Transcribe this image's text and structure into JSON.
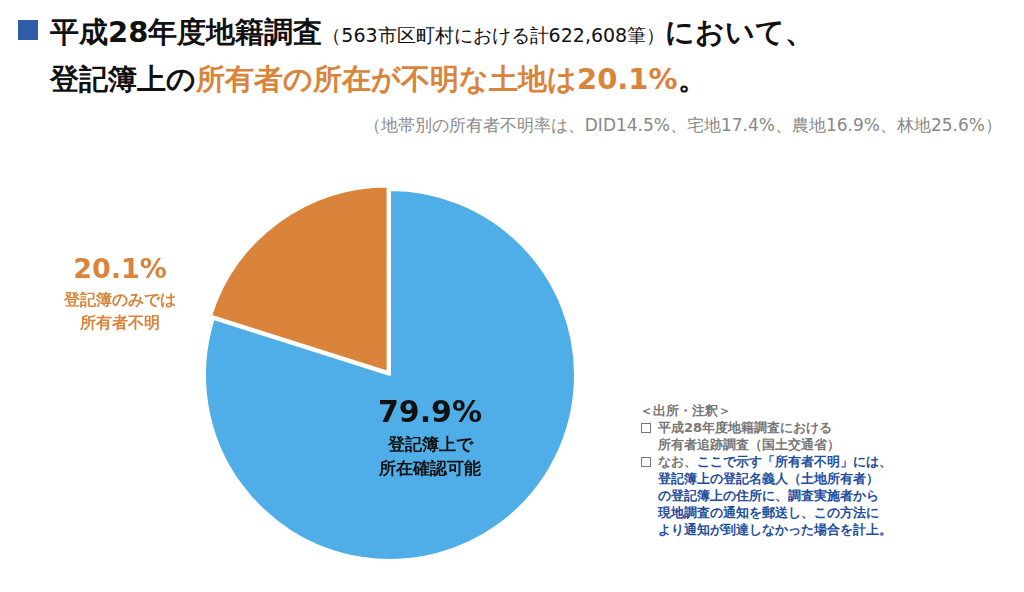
{
  "chart_data": {
    "type": "pie",
    "title": [
      "平成28年度地籍調査",
      "（563市区町村における計622,608筆）",
      "において、",
      "登記簿上の",
      "所有者の所在が不明な土地は20.1%",
      "。"
    ],
    "subtitle": "（地帯別の所有者不明率は、DID14.5%、宅地17.4%、農地16.9%、林地25.6%）",
    "categories": [
      "登記簿上で\n所在確認可能",
      "登記簿のみでは\n所有者不明"
    ],
    "values": [
      79.9,
      20.1
    ],
    "value_labels": [
      "79.9%",
      "20.1%"
    ],
    "colors": [
      "#4FAEE8",
      "#D9843A"
    ],
    "data_labels": true,
    "annotations": {
      "heading": "＜出所・注釈＞",
      "notes": [
        [
          "平成28年度地籍調査における\n所有者追跡調査（国土交通省）"
        ],
        [
          "なお、",
          "ここで示す「所有者不明」には、\n登記簿上の登記名義人（土地所有者）\nの登記簿上の住所に、調査実施者から\n現地調査の通知を郵送し、この方法に\nより通知が到達しなかった場合を計上。"
        ]
      ]
    }
  }
}
